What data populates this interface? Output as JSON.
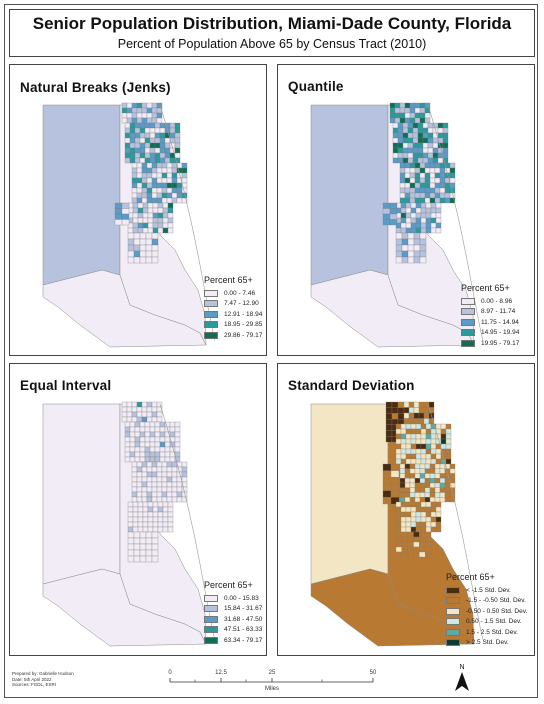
{
  "title": "Senior Population Distribution, Miami-Dade County, Florida",
  "subtitle": "Percent of Population Above 65 by Census Tract (2010)",
  "panels": [
    {
      "title": "Natural Breaks (Jenks)",
      "legend_title": "Percent 65+",
      "classes": [
        {
          "label": "0.00 - 7.46",
          "color": "#f1ecf5"
        },
        {
          "label": "7.47 - 12.90",
          "color": "#b7c3de"
        },
        {
          "label": "12.91 - 18.94",
          "color": "#5b9bc7"
        },
        {
          "label": "18.95 - 29.85",
          "color": "#2a9a9d"
        },
        {
          "label": "29.86 - 79.17",
          "color": "#0e6e56"
        }
      ]
    },
    {
      "title": "Quantile",
      "legend_title": "Percent 65+",
      "classes": [
        {
          "label": "0.00 - 8.96",
          "color": "#f1ecf5"
        },
        {
          "label": "8.97 - 11.74",
          "color": "#b7c3de"
        },
        {
          "label": "11.75 - 14.94",
          "color": "#5b9bc7"
        },
        {
          "label": "14.95 - 19.94",
          "color": "#2a9a9d"
        },
        {
          "label": "19.95 - 79.17",
          "color": "#0e6e56"
        }
      ]
    },
    {
      "title": "Equal Interval",
      "legend_title": "Percent 65+",
      "classes": [
        {
          "label": "0.00 - 15.83",
          "color": "#f1ecf5"
        },
        {
          "label": "15.84 - 31.67",
          "color": "#b7c3de"
        },
        {
          "label": "31.68 - 47.50",
          "color": "#5b9bc7"
        },
        {
          "label": "47.51 - 63.33",
          "color": "#2a9a9d"
        },
        {
          "label": "63.34 - 79.17",
          "color": "#0e6e56"
        }
      ]
    },
    {
      "title": "Standard Deviation",
      "legend_title": "Percent 65+",
      "classes": [
        {
          "label": "< -1.5 Std. Dev.",
          "color": "#4a2c10"
        },
        {
          "label": "-1.5 - -0.50 Std. Dev.",
          "color": "#b87a33"
        },
        {
          "label": "-0.50 - 0.50 Std. Dev.",
          "color": "#f3e6c4"
        },
        {
          "label": "0.50 - 1.5 Std. Dev.",
          "color": "#cfe8e3"
        },
        {
          "label": "1.5 - 2.5 Std. Dev.",
          "color": "#5fa9a2"
        },
        {
          "label": "> 2.5 Std. Dev.",
          "color": "#0f3d33"
        }
      ]
    }
  ],
  "credits": {
    "line1": "Prepared by: Gabrielle Hudson",
    "line2": "Date: 5th April 2022",
    "line3": "Sources: FGDL, ESRI"
  },
  "scale": {
    "ticks": [
      "0",
      "12.5",
      "25",
      "50"
    ],
    "unit": "Miles"
  },
  "north_label": "N"
}
